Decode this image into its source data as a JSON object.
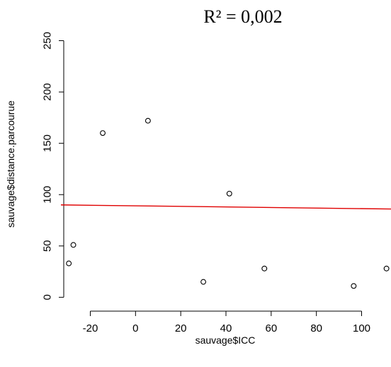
{
  "chart_data": {
    "type": "scatter",
    "title": "R² = 0,002",
    "xlabel": "sauvage$ICC",
    "ylabel": "sauvage$distance.parcourue",
    "xlim": [
      -33,
      113
    ],
    "ylim": [
      -8,
      260
    ],
    "x_ticks": [
      -20,
      0,
      20,
      40,
      60,
      80,
      100
    ],
    "y_ticks": [
      0,
      50,
      100,
      150,
      200,
      250
    ],
    "points": [
      {
        "x": -29.5,
        "y": 33
      },
      {
        "x": -27.5,
        "y": 51
      },
      {
        "x": -14.5,
        "y": 160
      },
      {
        "x": 5.5,
        "y": 172
      },
      {
        "x": 30,
        "y": 15
      },
      {
        "x": 41.5,
        "y": 101
      },
      {
        "x": 57,
        "y": 28
      },
      {
        "x": 96.5,
        "y": 11
      },
      {
        "x": 111,
        "y": 28
      }
    ],
    "fit_line": {
      "x": [
        -33,
        113
      ],
      "y": [
        90,
        86
      ],
      "color": "#e00000"
    },
    "point_color": "#000000",
    "grid": false
  }
}
